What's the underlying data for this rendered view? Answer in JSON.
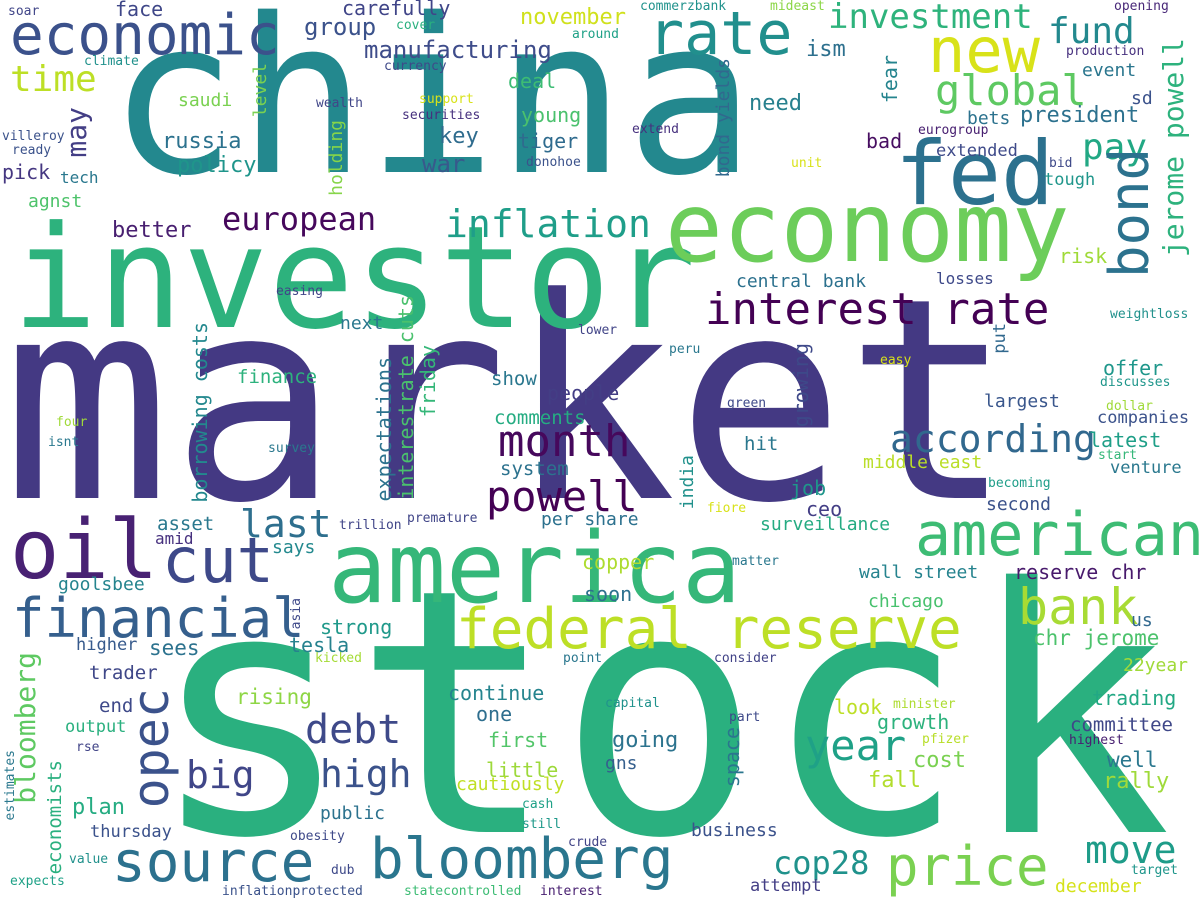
{
  "words": [
    {
      "text": "market",
      "color": "#443983"
    },
    {
      "text": "stock",
      "color": "#2ab07f"
    },
    {
      "text": "china",
      "color": "#23888e"
    },
    {
      "text": "investor",
      "color": "#2db27d"
    },
    {
      "text": "economy",
      "color": "#6ccd5a"
    },
    {
      "text": "america",
      "color": "#35b779"
    },
    {
      "text": "fed",
      "color": "#2c718e"
    },
    {
      "text": "economic",
      "color": "#3b518b"
    },
    {
      "text": "new",
      "color": "#d8e219"
    },
    {
      "text": "rate",
      "color": "#218f8d"
    },
    {
      "text": "oil",
      "color": "#482173"
    },
    {
      "text": "cut",
      "color": "#3e4989"
    },
    {
      "text": "american",
      "color": "#3dbc74"
    },
    {
      "text": "federal reserve",
      "color": "#bddf26"
    },
    {
      "text": "financial",
      "color": "#355f8d"
    },
    {
      "text": "source",
      "color": "#2c718e"
    },
    {
      "text": "bloomberg",
      "color": "#2a768e"
    },
    {
      "text": "price",
      "color": "#7ad151"
    },
    {
      "text": "bank",
      "color": "#a8db34"
    },
    {
      "text": "interest rate",
      "color": "#440154"
    },
    {
      "text": "inflation",
      "color": "#1f9e89"
    },
    {
      "text": "investment",
      "color": "#2eb37c"
    },
    {
      "text": "global",
      "color": "#5ec962"
    },
    {
      "text": "fund",
      "color": "#23898e"
    },
    {
      "text": "time",
      "color": "#bddf26"
    },
    {
      "text": "european",
      "color": "#46085c"
    },
    {
      "text": "month",
      "color": "#46085c"
    },
    {
      "text": "powell",
      "color": "#440154"
    },
    {
      "text": "according",
      "color": "#31688e"
    },
    {
      "text": "year",
      "color": "#1fa187"
    },
    {
      "text": "debt",
      "color": "#3e4989"
    },
    {
      "text": "high",
      "color": "#3b528b"
    },
    {
      "text": "big",
      "color": "#404688"
    },
    {
      "text": "last",
      "color": "#2e6f8e"
    },
    {
      "text": "move",
      "color": "#1e9c89"
    },
    {
      "text": "cop28",
      "color": "#20928c"
    },
    {
      "text": "pay",
      "color": "#22a884"
    },
    {
      "text": "manufacturing",
      "color": "#3e4c8a"
    },
    {
      "text": "group",
      "color": "#3b528b"
    },
    {
      "text": "november",
      "color": "#d0e11c"
    },
    {
      "text": "russia",
      "color": "#2c728e"
    },
    {
      "text": "policy",
      "color": "#1f958b"
    },
    {
      "text": "war",
      "color": "#38598c"
    },
    {
      "text": "key",
      "color": "#2f6c8e"
    },
    {
      "text": "young",
      "color": "#4ac16d"
    },
    {
      "text": "tiger",
      "color": "#2f6b8e"
    },
    {
      "text": "deal",
      "color": "#3dbc74"
    },
    {
      "text": "need",
      "color": "#27808e"
    },
    {
      "text": "ism",
      "color": "#2d708e"
    },
    {
      "text": "face",
      "color": "#3f4788"
    },
    {
      "text": "carefully",
      "color": "#404588"
    },
    {
      "text": "saudi",
      "color": "#7ad151"
    },
    {
      "text": "pick",
      "color": "#453781"
    },
    {
      "text": "tech",
      "color": "#2a788e"
    },
    {
      "text": "agnst",
      "color": "#4ec36b"
    },
    {
      "text": "better",
      "color": "#481f70"
    },
    {
      "text": "president",
      "color": "#2c718e"
    },
    {
      "text": "bets",
      "color": "#2c728e"
    },
    {
      "text": "event",
      "color": "#2a768e"
    },
    {
      "text": "sd",
      "color": "#3b528b"
    },
    {
      "text": "bad",
      "color": "#470e61"
    },
    {
      "text": "extended",
      "color": "#3e4a89"
    },
    {
      "text": "tough",
      "color": "#1f968b"
    },
    {
      "text": "central bank",
      "color": "#2c718e"
    },
    {
      "text": "risk",
      "color": "#a0da39"
    },
    {
      "text": "losses",
      "color": "#3e4989"
    },
    {
      "text": "next",
      "color": "#2a778e"
    },
    {
      "text": "finance",
      "color": "#2db27d"
    },
    {
      "text": "show",
      "color": "#2a778e"
    },
    {
      "text": "people",
      "color": "#433e85"
    },
    {
      "text": "comments",
      "color": "#25ac82"
    },
    {
      "text": "system",
      "color": "#2c728e"
    },
    {
      "text": "asset",
      "color": "#2a788e"
    },
    {
      "text": "amid",
      "color": "#46307e"
    },
    {
      "text": "goolsbee",
      "color": "#25848e"
    },
    {
      "text": "says",
      "color": "#23898e"
    },
    {
      "text": "per share",
      "color": "#2c718e"
    },
    {
      "text": "soon",
      "color": "#2d708e"
    },
    {
      "text": "copper",
      "color": "#addc30"
    },
    {
      "text": "job",
      "color": "#1f968b"
    },
    {
      "text": "ceo",
      "color": "#433e85"
    },
    {
      "text": "hit",
      "color": "#2a778e"
    },
    {
      "text": "offer",
      "color": "#1f978b"
    },
    {
      "text": "largest",
      "color": "#39568c"
    },
    {
      "text": "latest",
      "color": "#1f9f88"
    },
    {
      "text": "companies",
      "color": "#3b528b"
    },
    {
      "text": "venture",
      "color": "#2a788e"
    },
    {
      "text": "middle east",
      "color": "#bade28"
    },
    {
      "text": "second",
      "color": "#3b528b"
    },
    {
      "text": "surveillance",
      "color": "#25ab82"
    },
    {
      "text": "wall street",
      "color": "#25838e"
    },
    {
      "text": "reserve chr",
      "color": "#481a6c"
    },
    {
      "text": "chicago",
      "color": "#48c16e"
    },
    {
      "text": "chr jerome",
      "color": "#4cc26c"
    },
    {
      "text": "strong",
      "color": "#1f998a"
    },
    {
      "text": "tesla",
      "color": "#26828e"
    },
    {
      "text": "higher",
      "color": "#375a8c"
    },
    {
      "text": "sees",
      "color": "#2c728e"
    },
    {
      "text": "trader",
      "color": "#3f4788"
    },
    {
      "text": "end",
      "color": "#3e4989"
    },
    {
      "text": "rising",
      "color": "#8ed645"
    },
    {
      "text": "output",
      "color": "#2ab07f"
    },
    {
      "text": "continue",
      "color": "#25848e"
    },
    {
      "text": "one",
      "color": "#2e6e8e"
    },
    {
      "text": "first",
      "color": "#52c569"
    },
    {
      "text": "little",
      "color": "#9dd93b"
    },
    {
      "text": "cautiously",
      "color": "#c0df25"
    },
    {
      "text": "going",
      "color": "#2c738e"
    },
    {
      "text": "gns",
      "color": "#355f8d"
    },
    {
      "text": "look",
      "color": "#bddf26"
    },
    {
      "text": "growth",
      "color": "#2db27d"
    },
    {
      "text": "cost",
      "color": "#7ad151"
    },
    {
      "text": "fall",
      "color": "#b2dd2d"
    },
    {
      "text": "trading",
      "color": "#22a884"
    },
    {
      "text": "committee",
      "color": "#3f4788"
    },
    {
      "text": "well",
      "color": "#2a778e"
    },
    {
      "text": "rally",
      "color": "#9fda3a"
    },
    {
      "text": "public",
      "color": "#2c728e"
    },
    {
      "text": "plan",
      "color": "#25ac82"
    },
    {
      "text": "thursday",
      "color": "#3b528b"
    },
    {
      "text": "business",
      "color": "#3b528b"
    },
    {
      "text": "attempt",
      "color": "#433e85"
    },
    {
      "text": "december",
      "color": "#d5e21a"
    },
    {
      "text": "22year",
      "color": "#a0da39"
    },
    {
      "text": "us",
      "color": "#31688e"
    },
    {
      "text": "highest",
      "color": "#482071"
    },
    {
      "text": "minister",
      "color": "#addc30"
    },
    {
      "text": "pfizer",
      "color": "#b8de29"
    },
    {
      "text": "part",
      "color": "#3e4989"
    },
    {
      "text": "capital",
      "color": "#20928c"
    },
    {
      "text": "consider",
      "color": "#414287"
    },
    {
      "text": "point",
      "color": "#2a778e"
    },
    {
      "text": "kicked",
      "color": "#a5db36"
    },
    {
      "text": "cash",
      "color": "#1fa187"
    },
    {
      "text": "still",
      "color": "#1f998a"
    },
    {
      "text": "crude",
      "color": "#414487"
    },
    {
      "text": "obesity",
      "color": "#3e4989"
    },
    {
      "text": "dub",
      "color": "#3e4989"
    },
    {
      "text": "rse",
      "color": "#414487"
    },
    {
      "text": "value",
      "color": "#21918c"
    },
    {
      "text": "expects",
      "color": "#1fa187"
    },
    {
      "text": "inflationprotected",
      "color": "#3b528b"
    },
    {
      "text": "statecontrolled",
      "color": "#3dbc74"
    },
    {
      "text": "interest",
      "color": "#482071"
    },
    {
      "text": "target",
      "color": "#1f968b"
    },
    {
      "text": "soar",
      "color": "#404588"
    },
    {
      "text": "cover",
      "color": "#2ab07f"
    },
    {
      "text": "commerzbank",
      "color": "#20928c"
    },
    {
      "text": "mideast",
      "color": "#8bd646"
    },
    {
      "text": "opening",
      "color": "#482878"
    },
    {
      "text": "production",
      "color": "#46307e"
    },
    {
      "text": "around",
      "color": "#1fa187"
    },
    {
      "text": "climate",
      "color": "#21918c"
    },
    {
      "text": "currency",
      "color": "#3e4989"
    },
    {
      "text": "support",
      "color": "#d8e219"
    },
    {
      "text": "wealth",
      "color": "#404688"
    },
    {
      "text": "securities",
      "color": "#46307e"
    },
    {
      "text": "villeroy",
      "color": "#3b528b"
    },
    {
      "text": "ready",
      "color": "#3b528b"
    },
    {
      "text": "extend",
      "color": "#46307e"
    },
    {
      "text": "donohoe",
      "color": "#3b528b"
    },
    {
      "text": "eurogroup",
      "color": "#482071"
    },
    {
      "text": "bid",
      "color": "#3e4989"
    },
    {
      "text": "unit",
      "color": "#d8e219"
    },
    {
      "text": "easing",
      "color": "#404588"
    },
    {
      "text": "lower",
      "color": "#414487"
    },
    {
      "text": "peru",
      "color": "#2a788e"
    },
    {
      "text": "weightloss",
      "color": "#21918c"
    },
    {
      "text": "easy",
      "color": "#d8e219"
    },
    {
      "text": "discusses",
      "color": "#1f968b"
    },
    {
      "text": "dollar",
      "color": "#a0da39"
    },
    {
      "text": "green",
      "color": "#3e4989"
    },
    {
      "text": "survey",
      "color": "#2a788e"
    },
    {
      "text": "four",
      "color": "#a0da39"
    },
    {
      "text": "isnt",
      "color": "#2a788e"
    },
    {
      "text": "start",
      "color": "#35b779"
    },
    {
      "text": "becoming",
      "color": "#1f9e89"
    },
    {
      "text": "trillion",
      "color": "#404588"
    },
    {
      "text": "premature",
      "color": "#404588"
    },
    {
      "text": "fiore",
      "color": "#d8e219"
    },
    {
      "text": "matter",
      "color": "#2a788e"
    },
    {
      "text": "asia",
      "color": "#3e4989"
    },
    {
      "text": "estimates",
      "color": "#2a788e"
    },
    {
      "text": "bond",
      "color": "#2c728e"
    },
    {
      "text": "jerome powell",
      "color": "#2db27d"
    },
    {
      "text": "opec",
      "color": "#3b528b"
    },
    {
      "text": "bloomberg",
      "color": "#5ec962"
    },
    {
      "text": "economists",
      "color": "#2ab07f"
    },
    {
      "text": "borrowing costs",
      "color": "#23888e"
    },
    {
      "text": "expectations",
      "color": "#2c728e"
    },
    {
      "text": "interestrate cuts",
      "color": "#4ac16d"
    },
    {
      "text": "friday",
      "color": "#35b779"
    },
    {
      "text": "india",
      "color": "#21918c"
    },
    {
      "text": "space",
      "color": "#2a768e"
    },
    {
      "text": "growing",
      "color": "#3e4989"
    },
    {
      "text": "put",
      "color": "#31688e"
    },
    {
      "text": "bond yields",
      "color": "#31688e"
    },
    {
      "text": "holding",
      "color": "#86d549"
    },
    {
      "text": "level",
      "color": "#7ad151"
    },
    {
      "text": "may",
      "color": "#433e85"
    },
    {
      "text": "fear",
      "color": "#25848e"
    }
  ]
}
